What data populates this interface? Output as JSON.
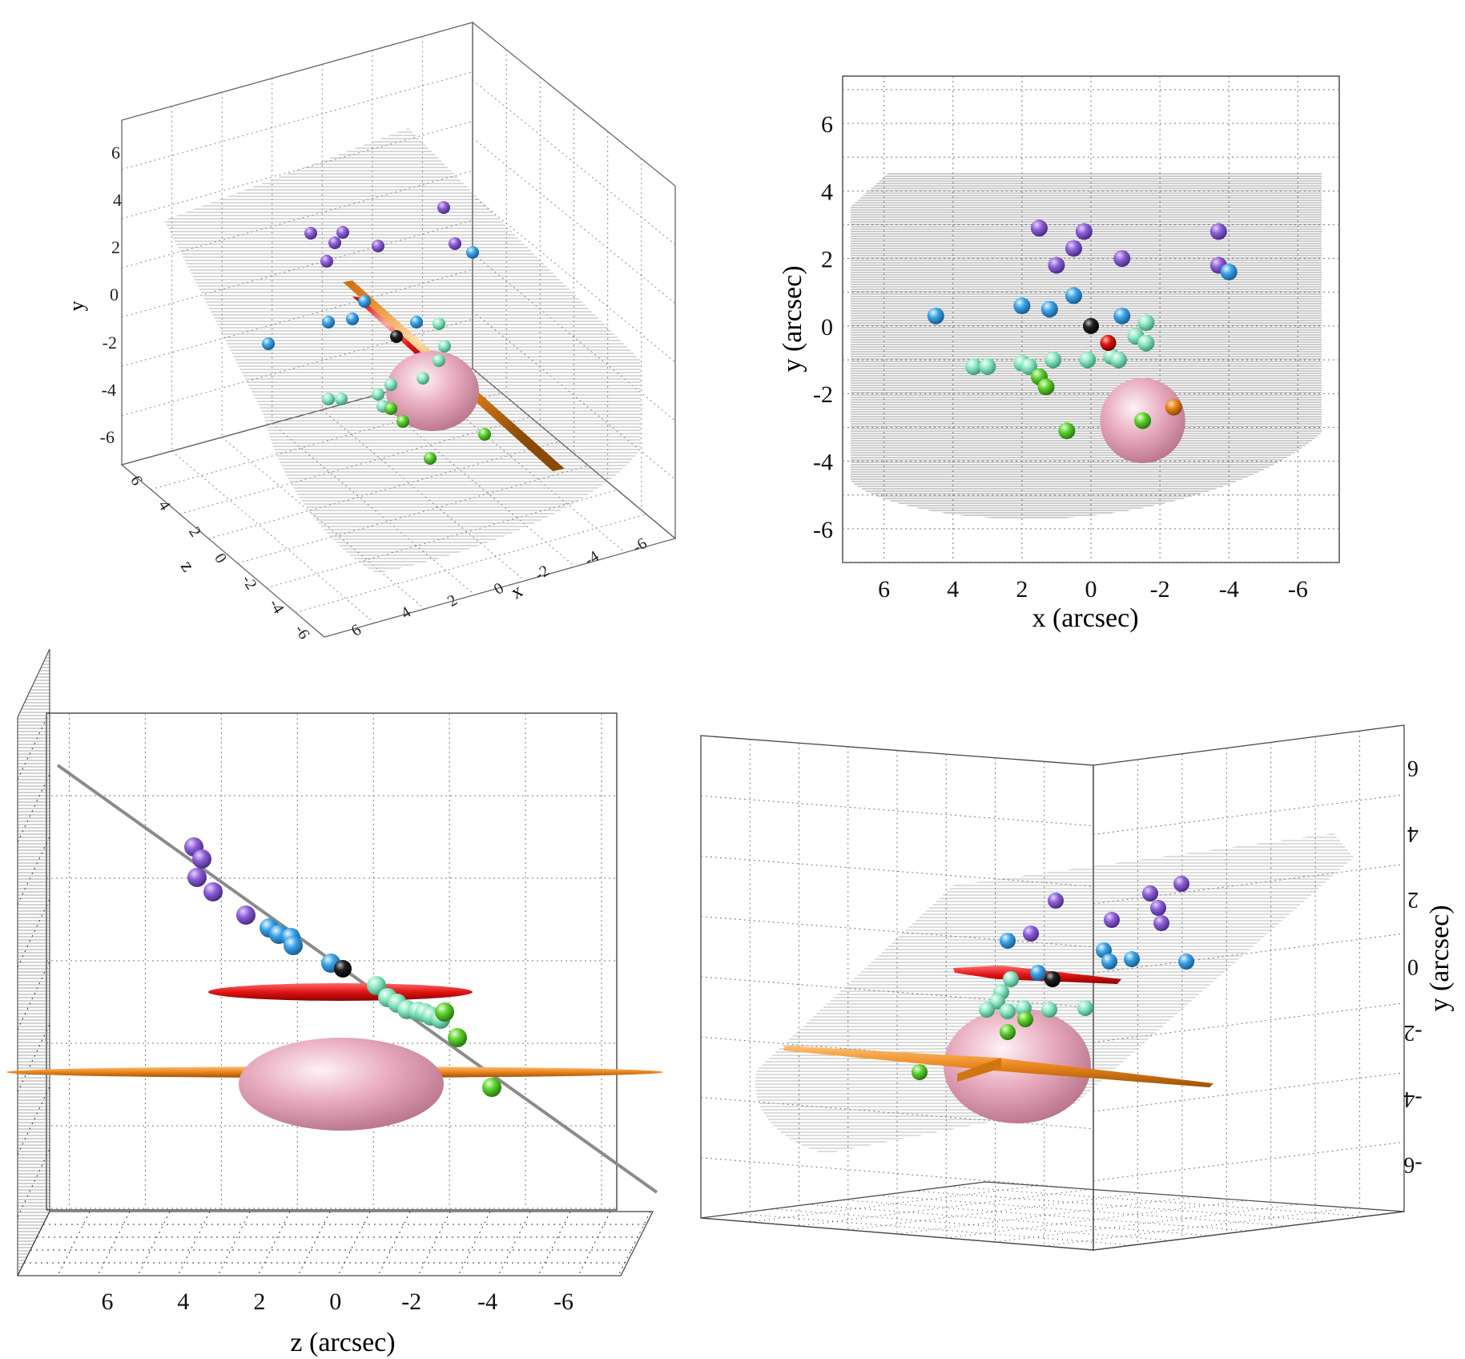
{
  "colors": {
    "purple": "#8e5fd8",
    "blue": "#3aa3e8",
    "aqua": "#8ee8c4",
    "green": "#5ed12f",
    "black": "#111111",
    "red": "#e01414",
    "orange": "#e8841c",
    "pink": "#e7a9bd",
    "sheet": "#9a9a9a"
  },
  "chart_data": [
    {
      "panel": "3d-perspective",
      "type": "scatter",
      "xlabel": "x",
      "ylabel": "y",
      "zlabel": "z",
      "y_ticks": [
        "6",
        "4",
        "2",
        "0",
        "-2",
        "-4",
        "-6"
      ],
      "x_ticks": [
        "6",
        "4",
        "2",
        "0",
        "-2",
        "-4",
        "-6"
      ],
      "z_ticks": [
        "6",
        "4",
        "2",
        "0",
        "-2",
        "-4",
        "-6"
      ]
    },
    {
      "panel": "xy-projection",
      "type": "scatter",
      "xlabel": "x (arcsec)",
      "ylabel": "y (arcsec)",
      "xlim": [
        7.2,
        -7.2
      ],
      "ylim": [
        -7,
        7.4
      ],
      "x_ticks": [
        "6",
        "4",
        "2",
        "0",
        "-2",
        "-4",
        "-6"
      ],
      "y_ticks": [
        "6",
        "4",
        "2",
        "0",
        "-2",
        "-4",
        "-6"
      ],
      "grid": true,
      "points": [
        {
          "x": 1.5,
          "y": 2.9,
          "c": "purple"
        },
        {
          "x": 0.2,
          "y": 2.8,
          "c": "purple"
        },
        {
          "x": 0.5,
          "y": 2.3,
          "c": "purple"
        },
        {
          "x": 1.0,
          "y": 1.8,
          "c": "purple"
        },
        {
          "x": -0.9,
          "y": 2.0,
          "c": "purple"
        },
        {
          "x": -3.7,
          "y": 2.8,
          "c": "purple"
        },
        {
          "x": -3.7,
          "y": 1.8,
          "c": "purple"
        },
        {
          "x": 4.5,
          "y": 0.3,
          "c": "blue"
        },
        {
          "x": 2.0,
          "y": 0.6,
          "c": "blue"
        },
        {
          "x": 1.2,
          "y": 0.5,
          "c": "blue"
        },
        {
          "x": 0.5,
          "y": 0.9,
          "c": "blue"
        },
        {
          "x": -0.9,
          "y": 0.3,
          "c": "blue"
        },
        {
          "x": -4.0,
          "y": 1.6,
          "c": "blue"
        },
        {
          "x": 3.4,
          "y": -1.2,
          "c": "aqua"
        },
        {
          "x": 3.0,
          "y": -1.2,
          "c": "aqua"
        },
        {
          "x": 2.0,
          "y": -1.1,
          "c": "aqua"
        },
        {
          "x": 1.8,
          "y": -1.2,
          "c": "aqua"
        },
        {
          "x": 1.1,
          "y": -1.0,
          "c": "aqua"
        },
        {
          "x": 0.1,
          "y": -1.0,
          "c": "aqua"
        },
        {
          "x": -0.6,
          "y": -0.9,
          "c": "aqua"
        },
        {
          "x": -0.8,
          "y": -1.0,
          "c": "aqua"
        },
        {
          "x": -1.3,
          "y": -0.3,
          "c": "aqua"
        },
        {
          "x": -1.6,
          "y": -0.5,
          "c": "aqua"
        },
        {
          "x": -1.6,
          "y": 0.1,
          "c": "aqua"
        },
        {
          "x": 1.5,
          "y": -1.5,
          "c": "green"
        },
        {
          "x": 1.3,
          "y": -1.8,
          "c": "green"
        },
        {
          "x": 0.7,
          "y": -3.1,
          "c": "green"
        },
        {
          "x": -1.5,
          "y": -2.8,
          "c": "green"
        },
        {
          "x": 0.0,
          "y": 0.0,
          "c": "black"
        },
        {
          "x": -0.5,
          "y": -0.5,
          "c": "red"
        },
        {
          "x": -2.4,
          "y": -2.4,
          "c": "orange"
        }
      ],
      "pink_sphere": {
        "x": -1.5,
        "y": -2.8,
        "r": 1.2
      }
    },
    {
      "panel": "zy-projection",
      "type": "scatter",
      "xlabel": "z (arcsec)",
      "x_ticks": [
        "6",
        "4",
        "2",
        "0",
        "-2",
        "-4",
        "-6"
      ],
      "xlim": [
        7.6,
        -7.4
      ],
      "grid": true
    },
    {
      "panel": "3d-rotated",
      "type": "scatter",
      "ylabel": "y (arcsec)",
      "y_ticks": [
        "6",
        "4",
        "2",
        "0",
        "-2",
        "-4",
        "-6"
      ],
      "grid": true
    }
  ]
}
